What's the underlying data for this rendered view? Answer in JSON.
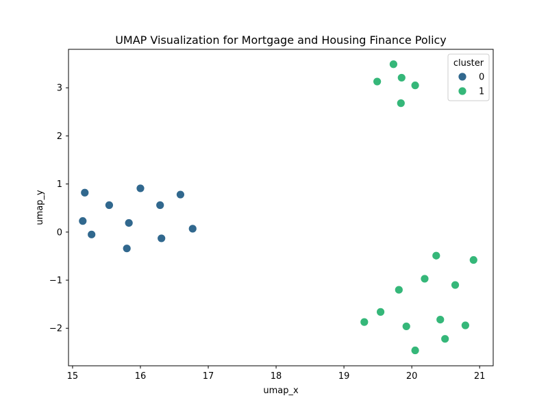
{
  "chart_data": {
    "type": "scatter",
    "title": "UMAP Visualization for Mortgage and Housing Finance Policy",
    "xlabel": "umap_x",
    "ylabel": "umap_y",
    "xlim": [
      14.94,
      21.2
    ],
    "ylim": [
      -2.78,
      3.8
    ],
    "xticks": [
      15,
      16,
      17,
      18,
      19,
      20,
      21
    ],
    "yticks": [
      -2,
      -1,
      0,
      1,
      2,
      3
    ],
    "ytick_labels": [
      "−2",
      "−1",
      "0",
      "1",
      "2",
      "3"
    ],
    "grid": false,
    "legend": {
      "title": "cluster",
      "placement": "top-right"
    },
    "series": [
      {
        "name": "0",
        "color": "#31688e",
        "points": [
          [
            15.18,
            0.82
          ],
          [
            15.54,
            0.56
          ],
          [
            16.0,
            0.91
          ],
          [
            16.29,
            0.56
          ],
          [
            16.59,
            0.78
          ],
          [
            15.15,
            0.23
          ],
          [
            15.83,
            0.19
          ],
          [
            15.28,
            -0.05
          ],
          [
            16.31,
            -0.13
          ],
          [
            16.77,
            0.07
          ],
          [
            15.8,
            -0.34
          ]
        ]
      },
      {
        "name": "1",
        "color": "#35b779",
        "points": [
          [
            19.73,
            3.49
          ],
          [
            19.85,
            3.21
          ],
          [
            19.49,
            3.13
          ],
          [
            20.05,
            3.05
          ],
          [
            19.84,
            2.68
          ],
          [
            20.36,
            -0.49
          ],
          [
            20.91,
            -0.58
          ],
          [
            20.19,
            -0.97
          ],
          [
            20.64,
            -1.1
          ],
          [
            19.81,
            -1.2
          ],
          [
            19.54,
            -1.66
          ],
          [
            19.3,
            -1.87
          ],
          [
            20.42,
            -1.82
          ],
          [
            19.92,
            -1.96
          ],
          [
            20.79,
            -1.94
          ],
          [
            20.49,
            -2.22
          ],
          [
            20.05,
            -2.46
          ]
        ]
      }
    ]
  }
}
